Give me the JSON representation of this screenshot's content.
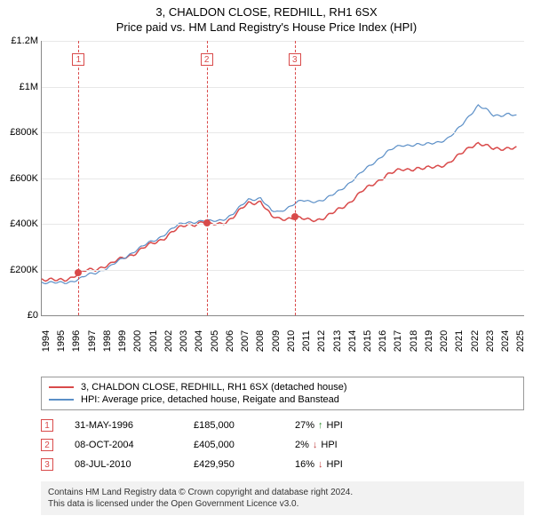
{
  "header": {
    "title": "3, CHALDON CLOSE, REDHILL, RH1 6SX",
    "subtitle": "Price paid vs. HM Land Registry's House Price Index (HPI)"
  },
  "chart": {
    "type": "line",
    "x_range": [
      1994,
      2025.5
    ],
    "y_range": [
      0,
      1200000
    ],
    "y_ticks": [
      0,
      200000,
      400000,
      600000,
      800000,
      1000000,
      1200000
    ],
    "y_tick_labels": [
      "£0",
      "£200K",
      "£400K",
      "£600K",
      "£800K",
      "£1M",
      "£1.2M"
    ],
    "x_ticks": [
      1994,
      1995,
      1996,
      1997,
      1998,
      1999,
      2000,
      2001,
      2002,
      2003,
      2004,
      2005,
      2006,
      2007,
      2008,
      2009,
      2010,
      2011,
      2012,
      2013,
      2014,
      2015,
      2016,
      2017,
      2018,
      2019,
      2020,
      2021,
      2022,
      2023,
      2024,
      2025
    ],
    "grid_color": "#e8e8e8",
    "axis_color": "#888888",
    "background_color": "#ffffff",
    "series": [
      {
        "name": "price_paid",
        "label": "3, CHALDON CLOSE, REDHILL, RH1 6SX (detached house)",
        "color": "#d94a4a",
        "line_width": 1.5,
        "points": [
          [
            1994.0,
            160000
          ],
          [
            1994.5,
            155000
          ],
          [
            1995.0,
            150000
          ],
          [
            1995.5,
            155000
          ],
          [
            1996.0,
            170000
          ],
          [
            1996.4,
            185000
          ],
          [
            1997.0,
            195000
          ],
          [
            1997.5,
            200000
          ],
          [
            1998.0,
            215000
          ],
          [
            1998.5,
            225000
          ],
          [
            1999.0,
            240000
          ],
          [
            1999.5,
            255000
          ],
          [
            2000.0,
            270000
          ],
          [
            2000.5,
            290000
          ],
          [
            2001.0,
            305000
          ],
          [
            2001.5,
            320000
          ],
          [
            2002.0,
            340000
          ],
          [
            2002.5,
            365000
          ],
          [
            2003.0,
            380000
          ],
          [
            2003.5,
            395000
          ],
          [
            2004.0,
            400000
          ],
          [
            2004.5,
            410000
          ],
          [
            2004.77,
            405000
          ],
          [
            2005.0,
            395000
          ],
          [
            2005.5,
            398000
          ],
          [
            2006.0,
            410000
          ],
          [
            2006.5,
            430000
          ],
          [
            2007.0,
            460000
          ],
          [
            2007.5,
            490000
          ],
          [
            2008.0,
            495000
          ],
          [
            2008.3,
            500000
          ],
          [
            2008.7,
            460000
          ],
          [
            2009.0,
            430000
          ],
          [
            2009.5,
            420000
          ],
          [
            2010.0,
            425000
          ],
          [
            2010.52,
            429950
          ],
          [
            2011.0,
            420000
          ],
          [
            2011.5,
            415000
          ],
          [
            2012.0,
            420000
          ],
          [
            2012.5,
            430000
          ],
          [
            2013.0,
            445000
          ],
          [
            2013.5,
            465000
          ],
          [
            2014.0,
            490000
          ],
          [
            2014.5,
            520000
          ],
          [
            2015.0,
            545000
          ],
          [
            2015.5,
            565000
          ],
          [
            2016.0,
            590000
          ],
          [
            2016.5,
            615000
          ],
          [
            2017.0,
            625000
          ],
          [
            2017.5,
            635000
          ],
          [
            2018.0,
            640000
          ],
          [
            2018.5,
            645000
          ],
          [
            2019.0,
            640000
          ],
          [
            2019.5,
            645000
          ],
          [
            2020.0,
            655000
          ],
          [
            2020.5,
            665000
          ],
          [
            2021.0,
            685000
          ],
          [
            2021.5,
            710000
          ],
          [
            2022.0,
            740000
          ],
          [
            2022.5,
            755000
          ],
          [
            2023.0,
            740000
          ],
          [
            2023.5,
            725000
          ],
          [
            2024.0,
            730000
          ],
          [
            2024.5,
            735000
          ],
          [
            2025.0,
            730000
          ]
        ]
      },
      {
        "name": "hpi",
        "label": "HPI: Average price, detached house, Reigate and Banstead",
        "color": "#5b8fc7",
        "line_width": 1.2,
        "points": [
          [
            1994.0,
            145000
          ],
          [
            1994.5,
            142000
          ],
          [
            1995.0,
            140000
          ],
          [
            1995.5,
            143000
          ],
          [
            1996.0,
            150000
          ],
          [
            1996.5,
            160000
          ],
          [
            1997.0,
            175000
          ],
          [
            1997.5,
            185000
          ],
          [
            1998.0,
            200000
          ],
          [
            1998.5,
            215000
          ],
          [
            1999.0,
            235000
          ],
          [
            1999.5,
            255000
          ],
          [
            2000.0,
            280000
          ],
          [
            2000.5,
            300000
          ],
          [
            2001.0,
            315000
          ],
          [
            2001.5,
            330000
          ],
          [
            2002.0,
            355000
          ],
          [
            2002.5,
            380000
          ],
          [
            2003.0,
            395000
          ],
          [
            2003.5,
            405000
          ],
          [
            2004.0,
            410000
          ],
          [
            2004.5,
            415000
          ],
          [
            2005.0,
            410000
          ],
          [
            2005.5,
            412000
          ],
          [
            2006.0,
            425000
          ],
          [
            2006.5,
            445000
          ],
          [
            2007.0,
            475000
          ],
          [
            2007.5,
            505000
          ],
          [
            2008.0,
            510000
          ],
          [
            2008.3,
            515000
          ],
          [
            2008.7,
            480000
          ],
          [
            2009.0,
            455000
          ],
          [
            2009.5,
            450000
          ],
          [
            2010.0,
            470000
          ],
          [
            2010.5,
            490000
          ],
          [
            2011.0,
            500000
          ],
          [
            2011.5,
            495000
          ],
          [
            2012.0,
            500000
          ],
          [
            2012.5,
            510000
          ],
          [
            2013.0,
            525000
          ],
          [
            2013.5,
            545000
          ],
          [
            2014.0,
            575000
          ],
          [
            2014.5,
            605000
          ],
          [
            2015.0,
            630000
          ],
          [
            2015.5,
            655000
          ],
          [
            2016.0,
            685000
          ],
          [
            2016.5,
            715000
          ],
          [
            2017.0,
            730000
          ],
          [
            2017.5,
            740000
          ],
          [
            2018.0,
            745000
          ],
          [
            2018.5,
            750000
          ],
          [
            2019.0,
            745000
          ],
          [
            2019.5,
            750000
          ],
          [
            2020.0,
            760000
          ],
          [
            2020.5,
            775000
          ],
          [
            2021.0,
            800000
          ],
          [
            2021.5,
            835000
          ],
          [
            2022.0,
            880000
          ],
          [
            2022.5,
            920000
          ],
          [
            2023.0,
            900000
          ],
          [
            2023.5,
            870000
          ],
          [
            2024.0,
            875000
          ],
          [
            2024.5,
            885000
          ],
          [
            2025.0,
            870000
          ]
        ]
      }
    ],
    "markers": [
      {
        "idx": "1",
        "x": 1996.4,
        "y": 185000
      },
      {
        "idx": "2",
        "x": 2004.77,
        "y": 405000
      },
      {
        "idx": "3",
        "x": 2010.52,
        "y": 429950
      }
    ],
    "marker_color": "#d94a4a"
  },
  "legend": {
    "border_color": "#999999"
  },
  "sales": [
    {
      "idx": "1",
      "date": "31-MAY-1996",
      "price": "£185,000",
      "delta_pct": "27%",
      "delta_dir": "↑",
      "delta_label": "HPI",
      "delta_color": "#2a8a2a"
    },
    {
      "idx": "2",
      "date": "08-OCT-2004",
      "price": "£405,000",
      "delta_pct": "2%",
      "delta_dir": "↓",
      "delta_label": "HPI",
      "delta_color": "#c04040"
    },
    {
      "idx": "3",
      "date": "08-JUL-2010",
      "price": "£429,950",
      "delta_pct": "16%",
      "delta_dir": "↓",
      "delta_label": "HPI",
      "delta_color": "#c04040"
    }
  ],
  "footer": {
    "line1": "Contains HM Land Registry data © Crown copyright and database right 2024.",
    "line2": "This data is licensed under the Open Government Licence v3.0."
  }
}
